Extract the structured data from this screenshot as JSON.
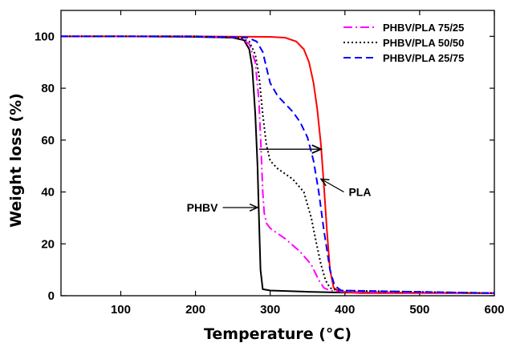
{
  "chart_data": {
    "type": "line",
    "xlabel": "Temperature (°C)",
    "ylabel": "Weight loss (%)",
    "xlim": [
      20,
      600
    ],
    "ylim": [
      0,
      110
    ],
    "xticks": [
      100,
      200,
      300,
      400,
      500,
      600
    ],
    "yticks": [
      0,
      20,
      40,
      60,
      80,
      100
    ],
    "grid": false,
    "legend_position": "top-right",
    "series": [
      {
        "name": "",
        "color": "#000000",
        "dash": "solid",
        "x": [
          20,
          100,
          200,
          250,
          265,
          272,
          276,
          280,
          283,
          285,
          287,
          290,
          300,
          350,
          400,
          600
        ],
        "y": [
          100,
          100,
          99.8,
          99.5,
          98.5,
          95,
          88,
          70,
          50,
          30,
          10,
          2.5,
          2,
          1.5,
          1.2,
          1
        ]
      },
      {
        "name": "",
        "color": "#ff0000",
        "dash": "solid",
        "x": [
          20,
          100,
          200,
          300,
          320,
          335,
          345,
          352,
          358,
          363,
          368,
          372,
          376,
          380,
          385,
          395,
          420,
          600
        ],
        "y": [
          100,
          100,
          100,
          99.8,
          99.5,
          98,
          95,
          90,
          82,
          72,
          58,
          42,
          25,
          10,
          3,
          1.5,
          1,
          1
        ]
      },
      {
        "name": "PHBV/PLA 75/25",
        "color": "#ff00ff",
        "dash": "dashdot",
        "x": [
          20,
          100,
          200,
          260,
          272,
          280,
          285,
          288,
          290,
          292,
          295,
          300,
          320,
          340,
          355,
          365,
          372,
          380,
          400,
          600
        ],
        "y": [
          100,
          100,
          100,
          99.5,
          97,
          90,
          75,
          55,
          40,
          32,
          28,
          26,
          22,
          17,
          12,
          6,
          3,
          2,
          1.5,
          1
        ]
      },
      {
        "name": "PHBV/PLA 50/50",
        "color": "#000000",
        "dash": "dotted",
        "x": [
          20,
          100,
          200,
          260,
          272,
          280,
          285,
          290,
          295,
          300,
          310,
          330,
          345,
          355,
          362,
          368,
          374,
          380,
          390,
          600
        ],
        "y": [
          100,
          100,
          100,
          99.5,
          98,
          93,
          85,
          70,
          58,
          52,
          49,
          45,
          40,
          30,
          20,
          12,
          6,
          3,
          2,
          1
        ]
      },
      {
        "name": "PHBV/PLA 25/75",
        "color": "#0000ff",
        "dash": "dashed",
        "x": [
          20,
          100,
          200,
          270,
          282,
          290,
          295,
          300,
          310,
          320,
          330,
          340,
          350,
          358,
          365,
          372,
          380,
          386,
          395,
          600
        ],
        "y": [
          100,
          100,
          100,
          99.5,
          98,
          94,
          88,
          82,
          77,
          74,
          71,
          67,
          61,
          52,
          40,
          25,
          10,
          4,
          2,
          1
        ]
      }
    ],
    "annotations": [
      {
        "text": "PHBV",
        "x": 230,
        "y": 34,
        "arrow_to": [
          283,
          34
        ]
      },
      {
        "text": "PLA",
        "x": 405,
        "y": 40,
        "arrow_to": [
          368,
          45
        ]
      }
    ],
    "double_arrow": {
      "from": [
        285,
        56.5
      ],
      "to": [
        368,
        56.5
      ]
    }
  }
}
